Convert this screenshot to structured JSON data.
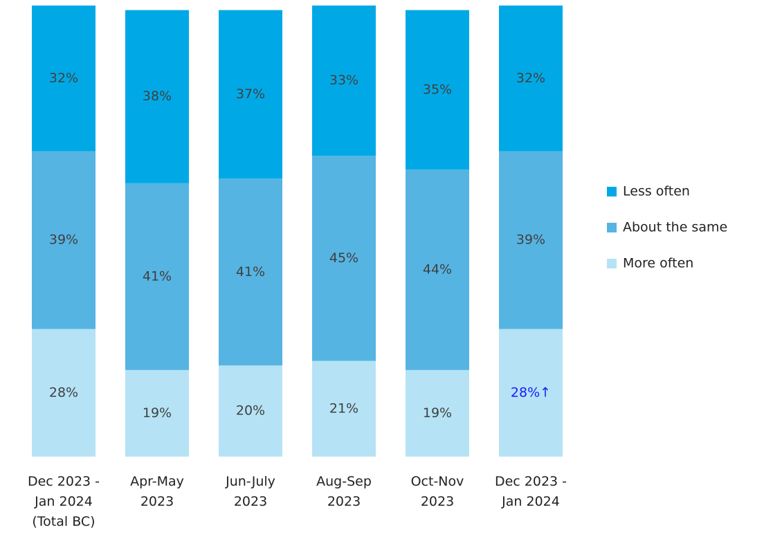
{
  "chart_data": {
    "type": "bar",
    "stacked": true,
    "categories": [
      "Dec 2023 - Jan 2024 (Total BC)",
      "Apr-May 2023",
      "Jun-July 2023",
      "Aug-Sep 2023",
      "Oct-Nov 2023",
      "Dec 2023 - Jan 2024"
    ],
    "series": [
      {
        "name": "More often",
        "color": "#b5e3f5",
        "values": [
          28,
          19,
          20,
          21,
          19,
          28
        ],
        "value_labels": [
          "28%",
          "19%",
          "20%",
          "21%",
          "19%",
          "28%↑"
        ],
        "label_colors": [
          "#404040",
          "#404040",
          "#404040",
          "#404040",
          "#404040",
          "#1a1aff"
        ]
      },
      {
        "name": "About the same",
        "color": "#56b4e3",
        "values": [
          39,
          41,
          41,
          45,
          44,
          39
        ],
        "value_labels": [
          "39%",
          "41%",
          "41%",
          "45%",
          "44%",
          "39%"
        ]
      },
      {
        "name": "Less often",
        "color": "#00a9e6",
        "values": [
          32,
          38,
          37,
          33,
          35,
          32
        ],
        "value_labels": [
          "32%",
          "38%",
          "37%",
          "33%",
          "35%",
          "32%"
        ]
      }
    ],
    "label_color": "#404040",
    "legend": "right"
  }
}
